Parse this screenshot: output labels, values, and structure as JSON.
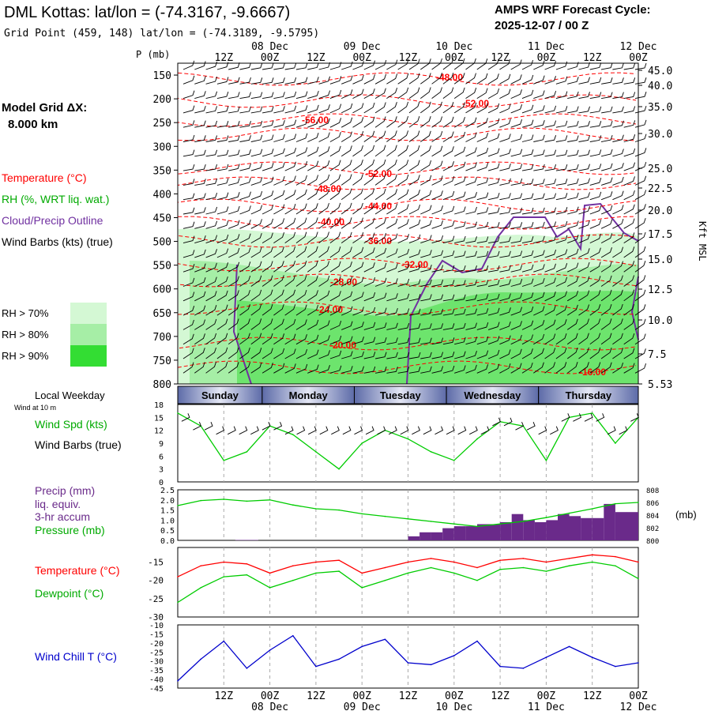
{
  "header": {
    "title": "DML Kottas:  lat/lon = (-74.3167, -9.6667)",
    "subtitle": "Grid Point (459, 148) lat/lon = (-74.3189, -9.5795)",
    "cycle_label": "AMPS WRF Forecast Cycle:",
    "cycle_value": "2025-12-07 / 00  Z"
  },
  "sidebar": {
    "grid_label": "Model Grid ΔX:",
    "grid_value": "8.000 km",
    "legend_temperature": "Temperature (°C)",
    "legend_rh": "RH (%, WRT liq. wat.)",
    "legend_cloud": "Cloud/Precip Outline",
    "legend_wind": "Wind Barbs (kts) (true)",
    "rh70": "RH > 70%",
    "rh80": "RH > 80%",
    "rh90": "RH > 90%",
    "local_weekday": "Local Weekday",
    "wind_10m": "Wind at 10 m",
    "wind_spd": "Wind Spd (kts)",
    "wind_barbs": "Wind Barbs (true)",
    "precip_1": "Precip (mm)",
    "precip_2": "liq. equiv.",
    "precip_3": "3-hr accum",
    "pressure": "Pressure (mb)",
    "pressure_unit": "(mb)",
    "temp": "Temperature (°C)",
    "dewpoint": "Dewpoint (°C)",
    "windchill": "Wind Chill T (°C)"
  },
  "colors": {
    "temperature": "#ff0000",
    "rh": "#00aa00",
    "cloud": "#7030a0",
    "wind": "#000000",
    "wind_speed": "#00cc00",
    "precip": "#6a2a8a",
    "pressure": "#00cc00",
    "dewpoint": "#00cc00",
    "wind_chill": "#0000cc",
    "rh70": "#d4f8d4",
    "rh80": "#a6eea6",
    "rh90": "#33dd33",
    "day_band_start": "#5d6ba8",
    "day_band_mid": "#e3e6f4"
  },
  "chart_data": {
    "time_axis": {
      "top_hour_labels": [
        "12Z",
        "00Z",
        "12Z",
        "00Z",
        "12Z",
        "00Z",
        "12Z",
        "00Z",
        "12Z",
        "00Z"
      ],
      "date_labels": [
        "08 Dec",
        "09 Dec",
        "10 Dec",
        "11 Dec",
        "12 Dec"
      ],
      "start_hour": 0,
      "end_hour": 120
    },
    "cross_section": {
      "type": "cross-section",
      "ylabel": "P (mb)",
      "pressure_levels": [
        150,
        200,
        250,
        300,
        350,
        400,
        450,
        500,
        550,
        600,
        650,
        700,
        750,
        800
      ],
      "right_axis_label": "Kft MSL",
      "right_ticks": [
        "45.0",
        "40.0",
        "35.0",
        "30.0",
        "25.0",
        "22.5",
        "20.0",
        "17.5",
        "15.0",
        "12.5",
        "10.0",
        "7.5",
        "5.53"
      ],
      "temperature_labels": [
        "-48.00",
        "-52.00",
        "-56.00",
        "-52.00",
        "-48.00",
        "-44.00",
        "-40.00",
        "-36.00",
        "-32.00",
        "-28.00",
        "-24.00",
        "-20.00",
        "-16.00"
      ]
    },
    "weekdays": [
      "Sunday",
      "Monday",
      "Tuesday",
      "Wednesday",
      "Thursday"
    ],
    "wind_speed": {
      "type": "line",
      "yticks": [
        0,
        3,
        6,
        9,
        12,
        15,
        18
      ],
      "ylim": [
        0,
        18
      ],
      "x": [
        0,
        6,
        12,
        18,
        24,
        30,
        36,
        42,
        48,
        54,
        60,
        66,
        72,
        78,
        84,
        90,
        96,
        102,
        108,
        114,
        120
      ],
      "values": [
        16,
        13,
        5,
        7,
        13,
        11,
        7,
        3,
        9,
        12,
        10,
        7,
        5,
        10,
        14,
        13,
        5,
        15,
        16,
        9,
        15
      ]
    },
    "precip_pressure": {
      "type": "bar+line",
      "precip_yticks": [
        "0.0",
        "0.5",
        "1.0",
        "1.5",
        "2.0",
        "2.5"
      ],
      "pressure_yticks": [
        "800",
        "802",
        "804",
        "806",
        "808"
      ],
      "precip_ylim": [
        0,
        2.5
      ],
      "pressure_ylim": [
        800,
        808
      ],
      "precip_x": [
        15,
        18,
        60,
        63,
        66,
        69,
        72,
        75,
        78,
        81,
        84,
        87,
        90,
        93,
        96,
        99,
        102,
        105,
        108,
        111,
        114,
        117
      ],
      "precip_values": [
        0.02,
        0.02,
        0.2,
        0.4,
        0.4,
        0.6,
        0.7,
        0.7,
        0.8,
        0.8,
        0.9,
        1.3,
        1.0,
        0.9,
        1.0,
        1.3,
        1.2,
        1.1,
        1.1,
        1.8,
        1.4,
        1.4
      ],
      "pressure_x": [
        0,
        6,
        12,
        18,
        24,
        30,
        36,
        42,
        48,
        54,
        60,
        66,
        72,
        78,
        84,
        90,
        96,
        102,
        108,
        114,
        120
      ],
      "pressure_values": [
        805.5,
        806.3,
        806.5,
        806.2,
        806.4,
        805.6,
        805.0,
        804.8,
        804.2,
        803.8,
        803.4,
        803.0,
        802.6,
        802.2,
        802.6,
        803.0,
        803.6,
        804.3,
        805.0,
        805.8,
        806.0
      ]
    },
    "temperature_dewpoint": {
      "type": "line",
      "yticks": [
        -15,
        -20,
        -25,
        -30
      ],
      "ylim": [
        -30,
        -11
      ],
      "x": [
        0,
        6,
        12,
        18,
        24,
        30,
        36,
        42,
        48,
        54,
        60,
        66,
        72,
        78,
        84,
        90,
        96,
        102,
        108,
        114,
        120
      ],
      "temperature": [
        -19,
        -16,
        -15,
        -15.5,
        -18,
        -16,
        -15,
        -14.5,
        -18,
        -16.5,
        -15,
        -14,
        -15,
        -16.5,
        -14.5,
        -14,
        -15,
        -14,
        -13,
        -13.5,
        -15
      ],
      "dewpoint": [
        -26,
        -22,
        -19,
        -18.5,
        -22,
        -20,
        -18,
        -17.5,
        -22,
        -20,
        -18,
        -16.5,
        -18,
        -20,
        -17,
        -16.5,
        -17.5,
        -16,
        -15,
        -16,
        -19.5
      ]
    },
    "wind_chill": {
      "type": "line",
      "yticks": [
        -10,
        -15,
        -20,
        -25,
        -30,
        -35,
        -40,
        -45
      ],
      "ylim": [
        -45,
        -10
      ],
      "x": [
        0,
        6,
        12,
        18,
        24,
        30,
        36,
        42,
        48,
        54,
        60,
        66,
        72,
        78,
        84,
        90,
        96,
        102,
        108,
        114,
        120
      ],
      "values": [
        -41,
        -29,
        -19,
        -34,
        -24,
        -16,
        -33,
        -29,
        -22,
        -18,
        -31,
        -32,
        -27,
        -19,
        -33,
        -34,
        -28,
        -22,
        -28,
        -33,
        -31
      ]
    },
    "bottom_hour_labels": [
      "12Z",
      "00Z",
      "12Z",
      "00Z",
      "12Z",
      "00Z",
      "12Z",
      "00Z",
      "12Z",
      "00Z"
    ],
    "bottom_date_labels": [
      "08 Dec",
      "09 Dec",
      "10 Dec",
      "11 Dec",
      "12 Dec"
    ]
  }
}
